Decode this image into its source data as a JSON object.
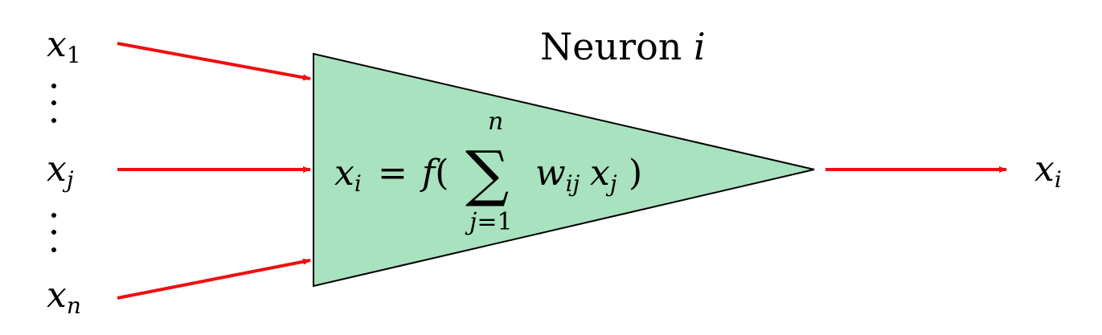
{
  "title": {
    "word": "Neuron",
    "var": "i"
  },
  "inputs": [
    {
      "base": "x",
      "sub": "1"
    },
    {
      "base": "x",
      "sub": "j"
    },
    {
      "base": "x",
      "sub": "n"
    }
  ],
  "output": {
    "base": "x",
    "sub": "i"
  },
  "formula": {
    "lhs_base": "x",
    "lhs_sub": "i",
    "equals": "=",
    "func": "f",
    "open_paren": "(",
    "sum_symbol": "∑",
    "sum_upper": "n",
    "sum_lower_var": "j",
    "sum_lower_rest": "=1",
    "weight_base": "w",
    "weight_sub": "ij",
    "term_base": "x",
    "term_sub": "j",
    "close_paren": ")"
  },
  "colors": {
    "neuron_fill": "#a8e2bf",
    "neuron_stroke": "#000000",
    "arrow": "#ee0f0f"
  },
  "icons": {
    "vertical_dots": "vertical-ellipsis-icon"
  }
}
